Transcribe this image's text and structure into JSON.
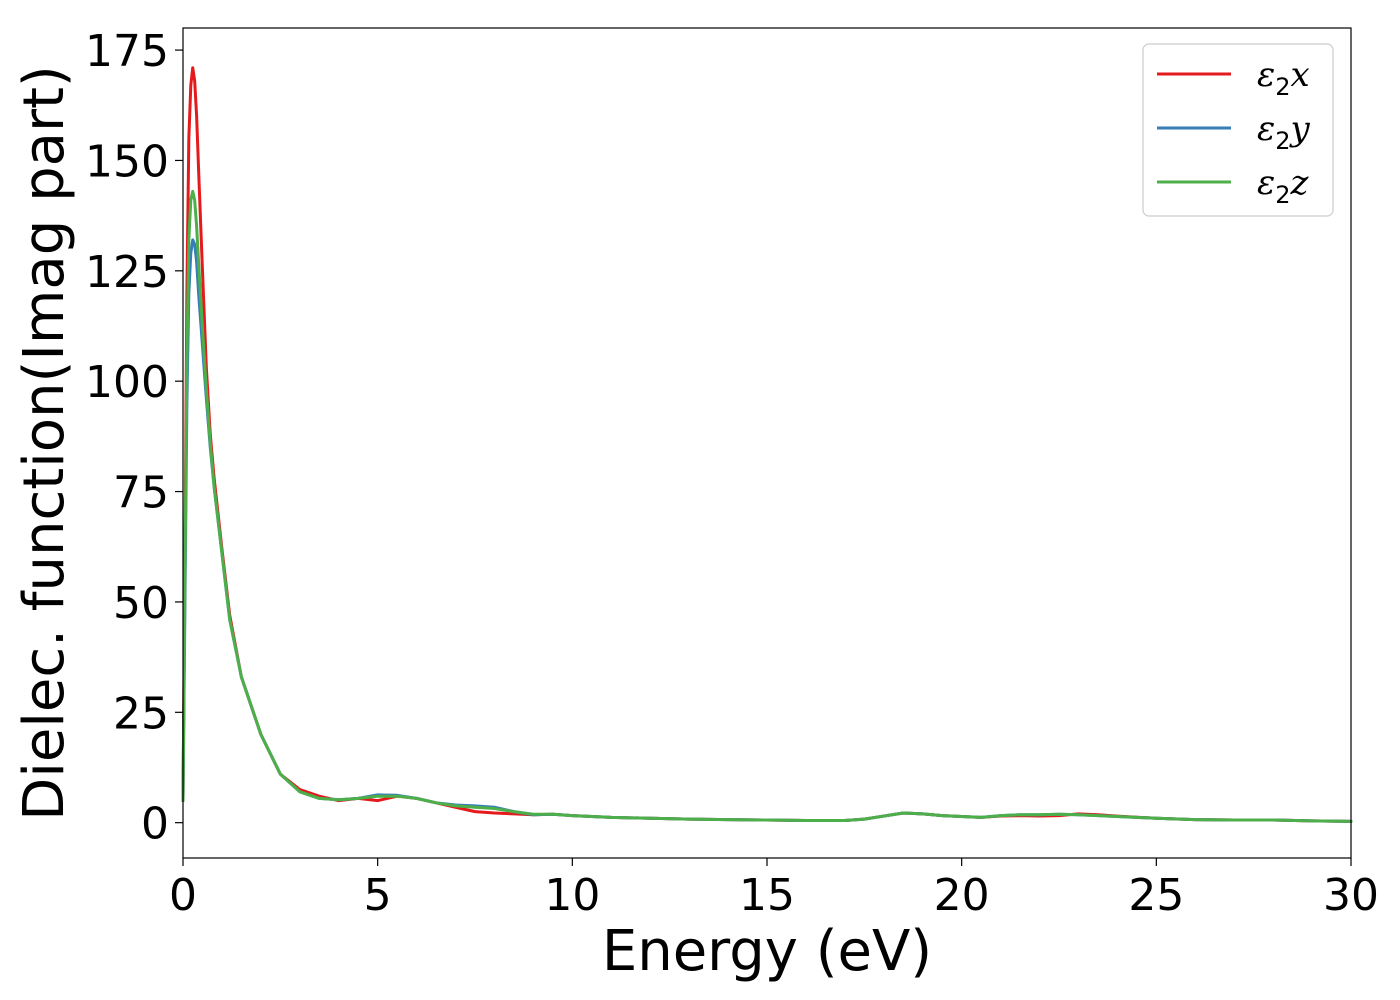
{
  "chart_data": {
    "type": "line",
    "title": "",
    "xlabel": "Energy (eV)",
    "ylabel": "Dielec. function(Imag part)",
    "xlim": [
      0,
      30
    ],
    "ylim": [
      -8,
      180
    ],
    "xticks": [
      0,
      5,
      10,
      15,
      20,
      25,
      30
    ],
    "xtick_labels": [
      "0",
      "5",
      "10",
      "15",
      "20",
      "25",
      "30"
    ],
    "yticks": [
      0,
      25,
      50,
      75,
      100,
      125,
      150,
      175
    ],
    "ytick_labels": [
      "0",
      "25",
      "50",
      "75",
      "100",
      "125",
      "150",
      "175"
    ],
    "grid": false,
    "legend": {
      "placement": "top-right",
      "entries": [
        {
          "symbol": "ε",
          "sub": "2",
          "axis": "x"
        },
        {
          "symbol": "ε",
          "sub": "2",
          "axis": "y"
        },
        {
          "symbol": "ε",
          "sub": "2",
          "axis": "z"
        }
      ]
    },
    "series": [
      {
        "color": "#e41a1c",
        "x": [
          0,
          0.05,
          0.1,
          0.15,
          0.2,
          0.25,
          0.3,
          0.35,
          0.4,
          0.5,
          0.6,
          0.7,
          0.8,
          1.0,
          1.2,
          1.5,
          2.0,
          2.5,
          3.0,
          3.5,
          4.0,
          4.5,
          5.0,
          5.5,
          6.0,
          6.5,
          7.0,
          7.5,
          8.0,
          8.5,
          9.0,
          9.5,
          10.0,
          11.0,
          12.0,
          13.0,
          14.0,
          15.0,
          16.0,
          17.0,
          17.5,
          18.0,
          18.5,
          19.0,
          19.5,
          20.0,
          20.5,
          21.0,
          21.5,
          22.0,
          22.5,
          23.0,
          23.5,
          24.0,
          25.0,
          26.0,
          27.0,
          28.0,
          29.0,
          30.0
        ],
        "y": [
          5,
          60,
          120,
          155,
          167,
          171,
          168,
          160,
          148,
          125,
          103,
          88,
          78,
          62,
          47,
          33,
          20,
          11,
          7.5,
          6,
          5,
          5.5,
          5,
          6,
          5.5,
          4.5,
          3.5,
          2.5,
          2.2,
          2,
          1.8,
          1.9,
          1.6,
          1.2,
          1,
          0.8,
          0.7,
          0.6,
          0.5,
          0.5,
          0.8,
          1.5,
          2.2,
          2,
          1.6,
          1.4,
          1.2,
          1.5,
          1.6,
          1.5,
          1.6,
          2,
          1.8,
          1.5,
          1,
          0.7,
          0.6,
          0.6,
          0.4,
          0.3
        ]
      },
      {
        "color": "#377eb8",
        "x": [
          0,
          0.05,
          0.1,
          0.15,
          0.2,
          0.25,
          0.3,
          0.35,
          0.4,
          0.5,
          0.6,
          0.7,
          0.8,
          1.0,
          1.2,
          1.5,
          2.0,
          2.5,
          3.0,
          3.5,
          4.0,
          4.5,
          5.0,
          5.5,
          6.0,
          6.5,
          7.0,
          7.5,
          8.0,
          8.5,
          9.0,
          9.5,
          10.0,
          11.0,
          12.0,
          13.0,
          14.0,
          15.0,
          16.0,
          17.0,
          17.5,
          18.0,
          18.5,
          19.0,
          19.5,
          20.0,
          20.5,
          21.0,
          21.5,
          22.0,
          22.5,
          23.0,
          23.5,
          24.0,
          25.0,
          26.0,
          27.0,
          28.0,
          29.0,
          30.0
        ],
        "y": [
          5,
          50,
          95,
          120,
          129,
          132,
          131,
          127,
          120,
          108,
          96,
          85,
          76,
          61,
          46,
          33,
          20,
          11,
          7,
          5.5,
          5.2,
          5.5,
          6.3,
          6.2,
          5.5,
          4.5,
          4,
          3.8,
          3.5,
          2.5,
          1.8,
          1.9,
          1.6,
          1.2,
          1,
          0.8,
          0.7,
          0.6,
          0.5,
          0.5,
          0.8,
          1.5,
          2.2,
          2,
          1.6,
          1.4,
          1.2,
          1.6,
          1.8,
          1.8,
          1.9,
          1.8,
          1.6,
          1.4,
          1,
          0.7,
          0.6,
          0.6,
          0.4,
          0.3
        ]
      },
      {
        "color": "#4daf4a",
        "x": [
          0,
          0.05,
          0.1,
          0.15,
          0.2,
          0.25,
          0.3,
          0.35,
          0.4,
          0.5,
          0.6,
          0.7,
          0.8,
          1.0,
          1.2,
          1.5,
          2.0,
          2.5,
          3.0,
          3.5,
          4.0,
          4.5,
          5.0,
          5.5,
          6.0,
          6.5,
          7.0,
          7.5,
          8.0,
          8.5,
          9.0,
          9.5,
          10.0,
          11.0,
          12.0,
          13.0,
          14.0,
          15.0,
          16.0,
          17.0,
          17.5,
          18.0,
          18.5,
          19.0,
          19.5,
          20.0,
          20.5,
          21.0,
          21.5,
          22.0,
          22.5,
          23.0,
          23.5,
          24.0,
          25.0,
          26.0,
          27.0,
          28.0,
          29.0,
          30.0
        ],
        "y": [
          5,
          55,
          105,
          132,
          141,
          143,
          141,
          135,
          127,
          112,
          98,
          86,
          76,
          61,
          46,
          33,
          20,
          11,
          7,
          5.5,
          5.2,
          5.5,
          6,
          6,
          5.5,
          4.5,
          3.8,
          3.5,
          3.2,
          2.5,
          1.9,
          1.9,
          1.6,
          1.2,
          1,
          0.8,
          0.7,
          0.6,
          0.5,
          0.5,
          0.8,
          1.5,
          2.2,
          2,
          1.6,
          1.4,
          1.2,
          1.6,
          1.8,
          1.8,
          1.9,
          1.8,
          1.6,
          1.4,
          1,
          0.7,
          0.6,
          0.6,
          0.4,
          0.3
        ]
      }
    ]
  }
}
